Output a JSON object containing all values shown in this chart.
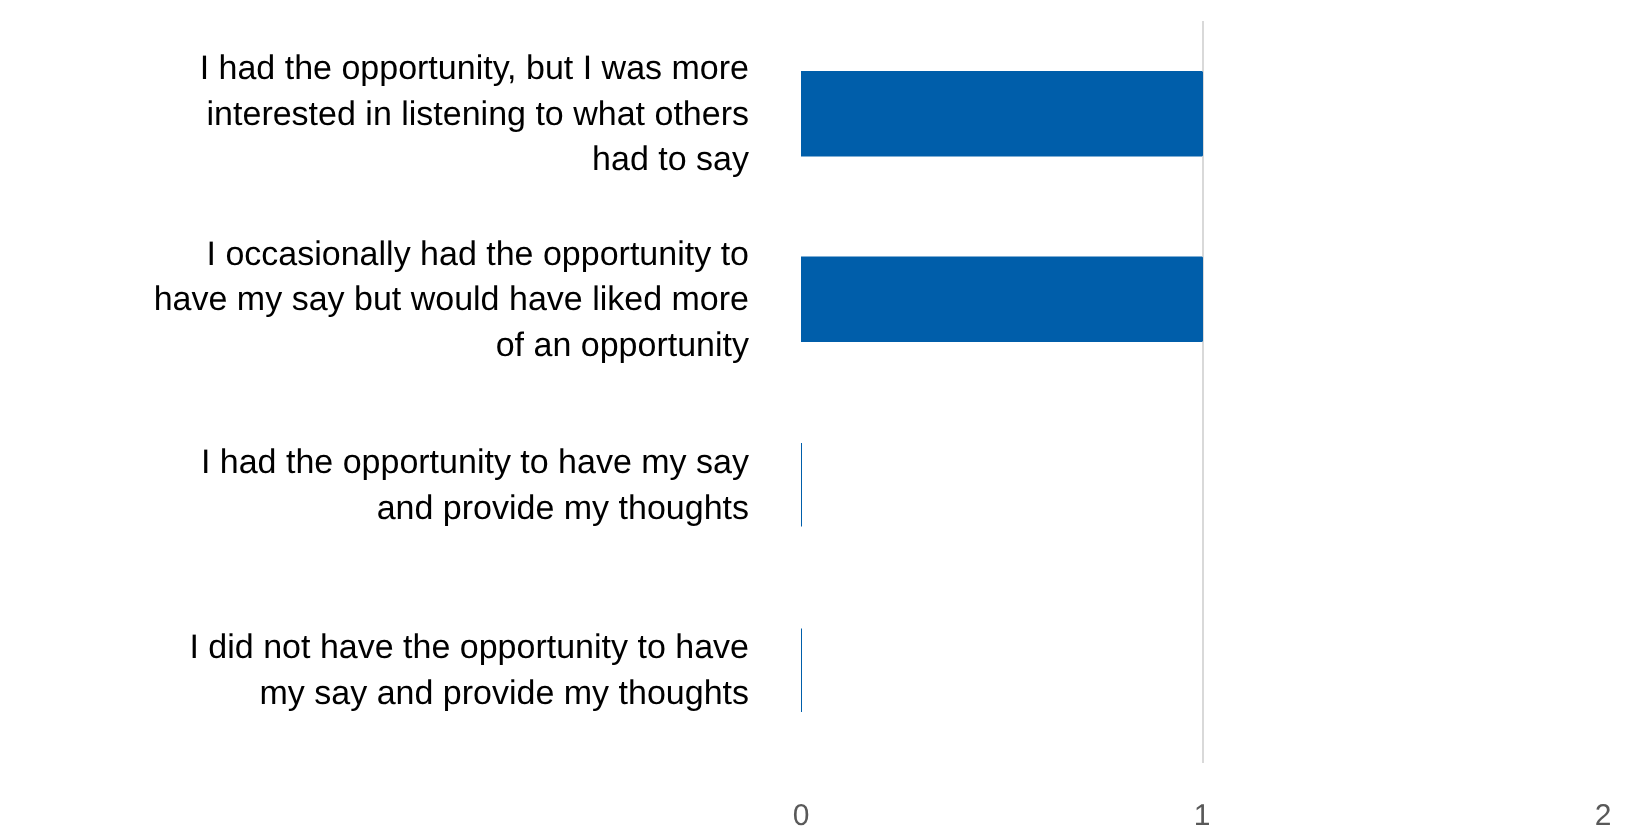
{
  "chart_data": {
    "type": "bar",
    "orientation": "horizontal",
    "categories": [
      "I had the opportunity, but I was more interested in listening to what others had to say",
      "I occasionally had the opportunity to have my say but would have liked more of an opportunity",
      "I had the opportunity to have my say and provide my thoughts",
      "I did not have the opportunity to have my say and provide my thoughts"
    ],
    "values": [
      1,
      1,
      0,
      0
    ],
    "color": "#005eaa",
    "xlim": [
      0,
      2
    ],
    "xticks": [
      0,
      1,
      2
    ],
    "grid": "x"
  }
}
